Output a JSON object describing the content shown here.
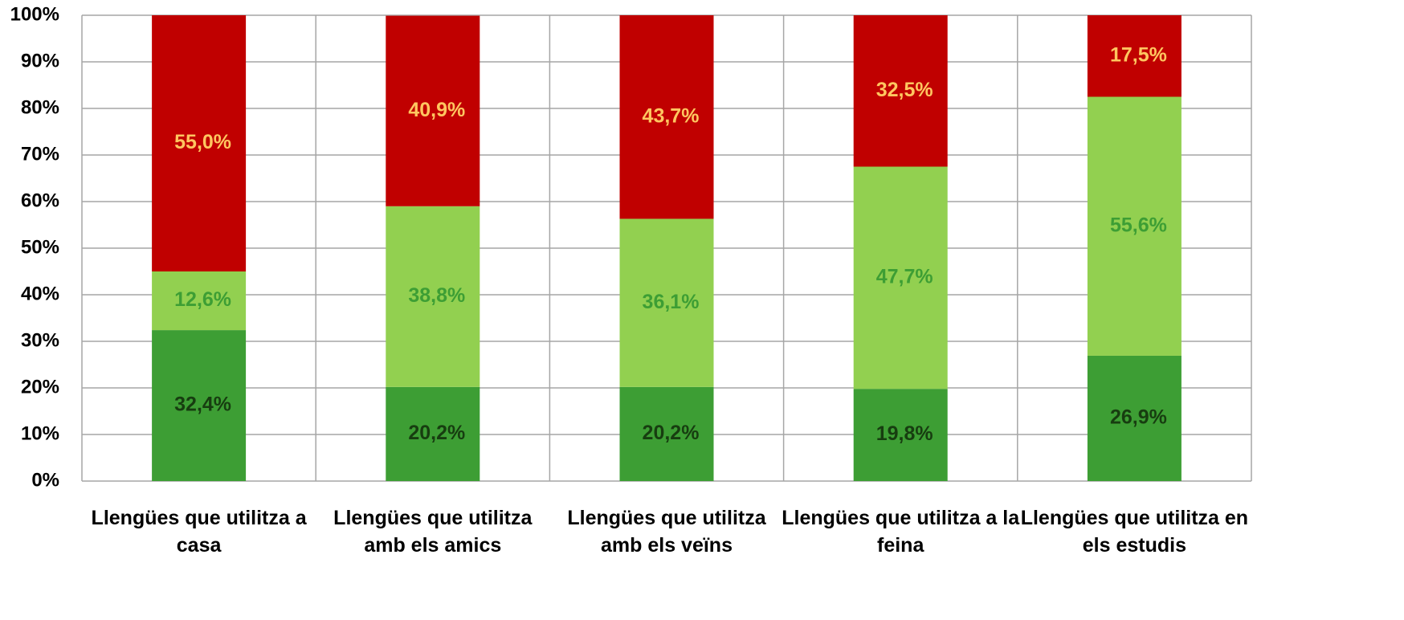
{
  "chart_data": {
    "type": "stacked_bar",
    "categories": [
      "Llengües que utilitza a casa",
      "Llengües que utilitza amb els amics",
      "Llengües que utilitza amb els veïns",
      "Llengües que utilitza a la feina",
      "Llengües que utilitza en els estudis"
    ],
    "series": [
      {
        "color": "#3d9e34",
        "label_color": "#173d10",
        "values": [
          32.4,
          20.2,
          20.2,
          19.8,
          26.9
        ],
        "value_labels": [
          "32,4%",
          "20,2%",
          "20,2%",
          "19,8%",
          "26,9%"
        ]
      },
      {
        "color": "#92d050",
        "label_color": "#3d9e34",
        "values": [
          12.6,
          38.8,
          36.1,
          47.7,
          55.6
        ],
        "value_labels": [
          "12,6%",
          "38,8%",
          "36,1%",
          "47,7%",
          "55,6%"
        ]
      },
      {
        "color": "#c00000",
        "label_color": "#ffc660",
        "values": [
          55.0,
          40.9,
          43.7,
          32.5,
          17.5
        ],
        "value_labels": [
          "55,0%",
          "40,9%",
          "43,7%",
          "32,5%",
          "17,5%"
        ]
      }
    ],
    "ylim": [
      0,
      100
    ],
    "yticks": [
      {
        "value": 0,
        "label": "0%"
      },
      {
        "value": 10,
        "label": "10%"
      },
      {
        "value": 20,
        "label": "20%"
      },
      {
        "value": 30,
        "label": "30%"
      },
      {
        "value": 40,
        "label": "40%"
      },
      {
        "value": 50,
        "label": "50%"
      },
      {
        "value": 60,
        "label": "60%"
      },
      {
        "value": 70,
        "label": "70%"
      },
      {
        "value": 80,
        "label": "80%"
      },
      {
        "value": 90,
        "label": "90%"
      },
      {
        "value": 100,
        "label": "100%"
      }
    ],
    "grid": true
  }
}
